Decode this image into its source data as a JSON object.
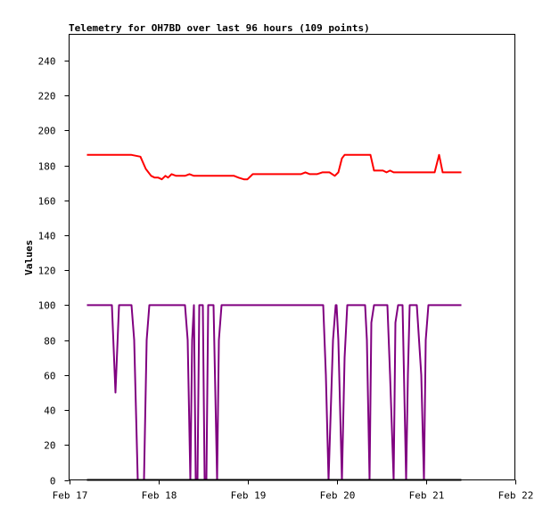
{
  "chart_data": {
    "type": "line",
    "title": "Telemetry for OH7BD over last 96 hours (109 points)",
    "xlabel": "",
    "ylabel": "Values",
    "ylim": [
      0,
      255
    ],
    "xlim": [
      0,
      5
    ],
    "x_ticks": [
      {
        "value": 0,
        "label": "Feb 17"
      },
      {
        "value": 1,
        "label": "Feb 18"
      },
      {
        "value": 2,
        "label": "Feb 19"
      },
      {
        "value": 3,
        "label": "Feb 20"
      },
      {
        "value": 4,
        "label": "Feb 21"
      },
      {
        "value": 5,
        "label": "Feb 22"
      }
    ],
    "y_ticks": [
      0,
      20,
      40,
      60,
      80,
      100,
      120,
      140,
      160,
      180,
      200,
      220,
      240
    ],
    "grid": false,
    "legend": "none",
    "series": [
      {
        "color": "#ff0000",
        "points": [
          [
            0.2,
            186
          ],
          [
            0.7,
            186
          ],
          [
            0.8,
            185
          ],
          [
            0.86,
            178
          ],
          [
            0.92,
            174
          ],
          [
            0.96,
            173
          ],
          [
            1.0,
            173
          ],
          [
            1.04,
            172
          ],
          [
            1.08,
            174
          ],
          [
            1.11,
            173
          ],
          [
            1.15,
            175
          ],
          [
            1.2,
            174
          ],
          [
            1.3,
            174
          ],
          [
            1.35,
            175
          ],
          [
            1.4,
            174
          ],
          [
            1.5,
            174
          ],
          [
            1.7,
            174
          ],
          [
            1.85,
            174
          ],
          [
            1.9,
            173
          ],
          [
            1.96,
            172
          ],
          [
            2.0,
            172
          ],
          [
            2.06,
            175
          ],
          [
            2.2,
            175
          ],
          [
            2.4,
            175
          ],
          [
            2.6,
            175
          ],
          [
            2.65,
            176
          ],
          [
            2.7,
            175
          ],
          [
            2.78,
            175
          ],
          [
            2.84,
            176
          ],
          [
            2.92,
            176
          ],
          [
            2.98,
            174
          ],
          [
            3.02,
            176
          ],
          [
            3.06,
            184
          ],
          [
            3.09,
            186
          ],
          [
            3.2,
            186
          ],
          [
            3.38,
            186
          ],
          [
            3.42,
            177
          ],
          [
            3.52,
            177
          ],
          [
            3.56,
            176
          ],
          [
            3.6,
            177
          ],
          [
            3.64,
            176
          ],
          [
            3.8,
            176
          ],
          [
            4.05,
            176
          ],
          [
            4.1,
            176
          ],
          [
            4.15,
            186
          ],
          [
            4.19,
            176
          ],
          [
            4.3,
            176
          ],
          [
            4.4,
            176
          ]
        ]
      },
      {
        "color": "#800080",
        "points": [
          [
            0.2,
            100
          ],
          [
            0.48,
            100
          ],
          [
            0.52,
            50
          ],
          [
            0.56,
            100
          ],
          [
            0.7,
            100
          ],
          [
            0.73,
            80
          ],
          [
            0.77,
            0
          ],
          [
            0.84,
            0
          ],
          [
            0.87,
            80
          ],
          [
            0.9,
            100
          ],
          [
            1.3,
            100
          ],
          [
            1.33,
            80
          ],
          [
            1.36,
            0
          ],
          [
            1.38,
            80
          ],
          [
            1.4,
            100
          ],
          [
            1.42,
            0
          ],
          [
            1.44,
            0
          ],
          [
            1.46,
            100
          ],
          [
            1.5,
            100
          ],
          [
            1.52,
            0
          ],
          [
            1.54,
            0
          ],
          [
            1.56,
            100
          ],
          [
            1.62,
            100
          ],
          [
            1.64,
            50
          ],
          [
            1.66,
            0
          ],
          [
            1.68,
            80
          ],
          [
            1.71,
            100
          ],
          [
            2.85,
            100
          ],
          [
            2.88,
            60
          ],
          [
            2.91,
            0
          ],
          [
            2.96,
            80
          ],
          [
            2.99,
            100
          ],
          [
            3.0,
            100
          ],
          [
            3.02,
            80
          ],
          [
            3.06,
            0
          ],
          [
            3.09,
            70
          ],
          [
            3.12,
            100
          ],
          [
            3.32,
            100
          ],
          [
            3.34,
            80
          ],
          [
            3.37,
            0
          ],
          [
            3.39,
            90
          ],
          [
            3.42,
            100
          ],
          [
            3.57,
            100
          ],
          [
            3.6,
            60
          ],
          [
            3.64,
            0
          ],
          [
            3.66,
            90
          ],
          [
            3.69,
            100
          ],
          [
            3.74,
            100
          ],
          [
            3.78,
            0
          ],
          [
            3.8,
            60
          ],
          [
            3.82,
            100
          ],
          [
            3.9,
            100
          ],
          [
            3.95,
            60
          ],
          [
            3.98,
            0
          ],
          [
            4.0,
            80
          ],
          [
            4.03,
            100
          ],
          [
            4.4,
            100
          ]
        ]
      },
      {
        "color": "#000000",
        "points": [
          [
            0.2,
            0
          ],
          [
            4.4,
            0
          ]
        ]
      }
    ]
  }
}
